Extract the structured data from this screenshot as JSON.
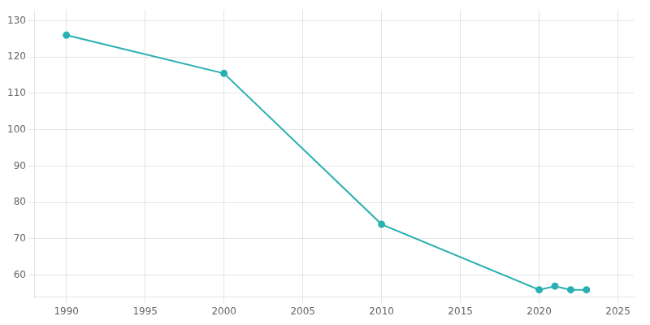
{
  "chart_data": {
    "type": "line",
    "x": [
      1990,
      2000,
      2010,
      2020,
      2021,
      2022,
      2023
    ],
    "values": [
      126,
      115.5,
      74,
      56,
      57,
      56,
      56
    ],
    "color": "#2ab0b0",
    "marker": "circle",
    "xlim": [
      1988,
      2026
    ],
    "xticks": [
      1990,
      1995,
      2000,
      2005,
      2010,
      2015,
      2020,
      2025
    ],
    "ylim": [
      54,
      133
    ],
    "yticks": [
      60,
      70,
      80,
      90,
      100,
      110,
      120,
      130
    ],
    "grid": true
  }
}
